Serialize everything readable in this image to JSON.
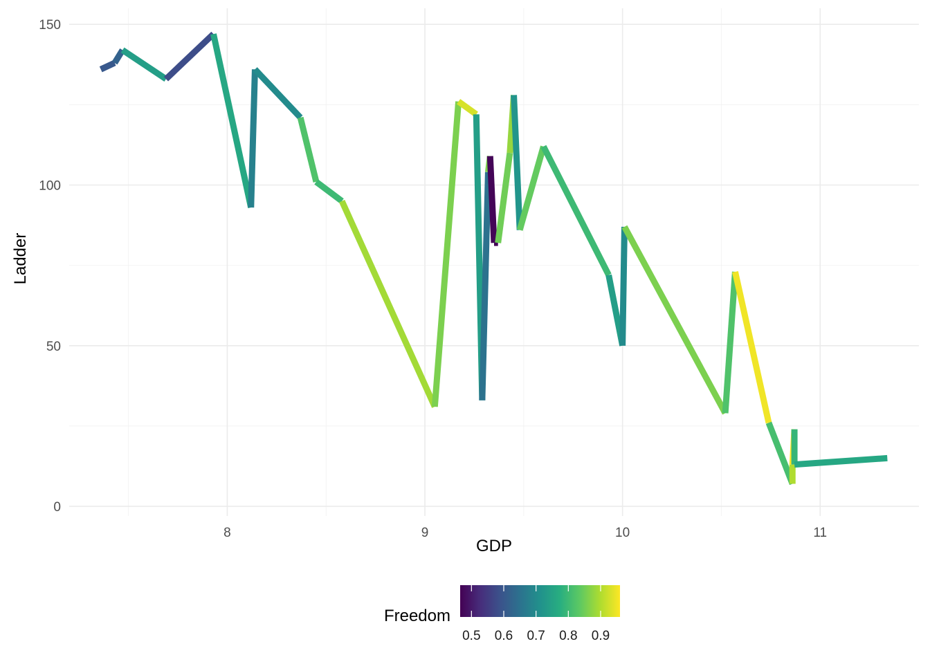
{
  "chart_data": {
    "type": "line",
    "xlabel": "GDP",
    "ylabel": "Ladder",
    "xlim": [
      7.2,
      11.5
    ],
    "ylim": [
      -3,
      155
    ],
    "x_ticks": [
      8,
      9,
      10,
      11
    ],
    "y_ticks": [
      0,
      50,
      100,
      150
    ],
    "x_tick_labels": [
      "8",
      "9",
      "10",
      "11"
    ],
    "y_tick_labels": [
      "0",
      "50",
      "100",
      "150"
    ],
    "grid": true,
    "legend": {
      "title": "Freedom",
      "position": "bottom",
      "range": [
        0.465,
        0.96
      ],
      "breaks": [
        0.5,
        0.6,
        0.7,
        0.8,
        0.9
      ],
      "break_labels": [
        "0.5",
        "0.6",
        "0.7",
        "0.8",
        "0.9"
      ]
    },
    "color_scale": "viridis",
    "points": [
      {
        "x": 7.36,
        "y": 136,
        "freedom": 0.6
      },
      {
        "x": 7.43,
        "y": 138,
        "freedom": 0.62
      },
      {
        "x": 7.47,
        "y": 142,
        "freedom": 0.74
      },
      {
        "x": 7.69,
        "y": 133,
        "freedom": 0.58
      },
      {
        "x": 7.93,
        "y": 147,
        "freedom": 0.76
      },
      {
        "x": 8.12,
        "y": 93,
        "freedom": 0.68
      },
      {
        "x": 8.14,
        "y": 136,
        "freedom": 0.7
      },
      {
        "x": 8.37,
        "y": 121,
        "freedom": 0.82
      },
      {
        "x": 8.45,
        "y": 101,
        "freedom": 0.8
      },
      {
        "x": 8.58,
        "y": 95,
        "freedom": 0.89
      },
      {
        "x": 9.05,
        "y": 31,
        "freedom": 0.86
      },
      {
        "x": 9.17,
        "y": 126,
        "freedom": 0.93
      },
      {
        "x": 9.26,
        "y": 122,
        "freedom": 0.74
      },
      {
        "x": 9.29,
        "y": 33,
        "freedom": 0.65
      },
      {
        "x": 9.32,
        "y": 104,
        "freedom": 0.86
      },
      {
        "x": 9.33,
        "y": 109,
        "freedom": 0.47
      },
      {
        "x": 9.35,
        "y": 82,
        "freedom": 0.47
      },
      {
        "x": 9.37,
        "y": 82,
        "freedom": 0.85
      },
      {
        "x": 9.43,
        "y": 110,
        "freedom": 0.88
      },
      {
        "x": 9.45,
        "y": 128,
        "freedom": 0.72
      },
      {
        "x": 9.48,
        "y": 86,
        "freedom": 0.84
      },
      {
        "x": 9.6,
        "y": 112,
        "freedom": 0.8
      },
      {
        "x": 9.93,
        "y": 72,
        "freedom": 0.74
      },
      {
        "x": 10.0,
        "y": 50,
        "freedom": 0.7
      },
      {
        "x": 10.01,
        "y": 87,
        "freedom": 0.86
      },
      {
        "x": 10.52,
        "y": 29,
        "freedom": 0.82
      },
      {
        "x": 10.57,
        "y": 73,
        "freedom": 0.95
      },
      {
        "x": 10.74,
        "y": 26,
        "freedom": 0.81
      },
      {
        "x": 10.86,
        "y": 7,
        "freedom": 0.9
      },
      {
        "x": 10.86,
        "y": 13,
        "freedom": 0.96
      },
      {
        "x": 10.87,
        "y": 24,
        "freedom": 0.79
      },
      {
        "x": 10.87,
        "y": 13,
        "freedom": 0.76
      },
      {
        "x": 11.34,
        "y": 15,
        "freedom": 0.87
      }
    ]
  }
}
